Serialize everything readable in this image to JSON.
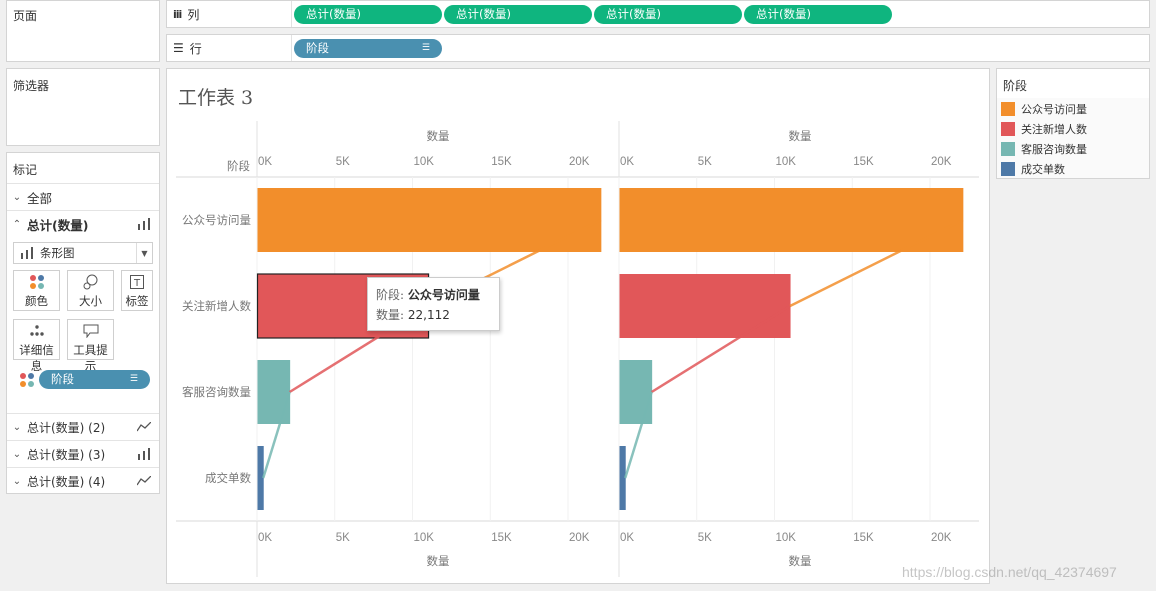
{
  "left_panel": {
    "pages_title": "页面",
    "filters_title": "筛选器",
    "marks_title": "标记",
    "all_label": "全部",
    "active_marks_label": "总计(数量)",
    "mark_type": "条形图",
    "mark_buttons": {
      "color": "颜色",
      "size": "大小",
      "label": "标签",
      "detail": "详细信息",
      "tooltip": "工具提示"
    },
    "color_pill": "阶段",
    "other_marks": [
      "总计(数量) (2)",
      "总计(数量) (3)",
      "总计(数量) (4)"
    ]
  },
  "shelves": {
    "columns_label": "列",
    "rows_label": "行",
    "column_pills": [
      "总计(数量)",
      "总计(数量)",
      "总计(数量)",
      "总计(数量)"
    ],
    "row_pill": "阶段"
  },
  "worksheet": {
    "title": "工作表 3",
    "row_header": "阶段"
  },
  "tooltip": {
    "label1": "阶段:",
    "value1": "公众号访问量",
    "label2": "数量:",
    "value2": "22,112"
  },
  "legend": {
    "title": "阶段",
    "items": [
      "公众号访问量",
      "关注新增人数",
      "客服咨询数量",
      "成交单数"
    ]
  },
  "watermark": "https://blog.csdn.net/qq_42374697",
  "colors": {
    "orange": "#f28e2b",
    "red": "#e15759",
    "teal": "#76b7b2",
    "blue": "#4e79a7",
    "green_pill": "#0fb57f",
    "blue_pill": "#4a90b0"
  },
  "chart_data": {
    "type": "bar",
    "categories": [
      "公众号访问量",
      "关注新增人数",
      "客服咨询数量",
      "成交单数"
    ],
    "panels": 2,
    "values": [
      22112,
      11000,
      2100,
      400
    ],
    "xlabel": "数量",
    "ylabel": "阶段",
    "xlim": [
      0,
      23500
    ],
    "ticks": [
      0,
      5000,
      10000,
      15000,
      20000
    ],
    "tick_labels": [
      "0K",
      "5K",
      "10K",
      "15K",
      "20K"
    ],
    "overlay": "line"
  }
}
